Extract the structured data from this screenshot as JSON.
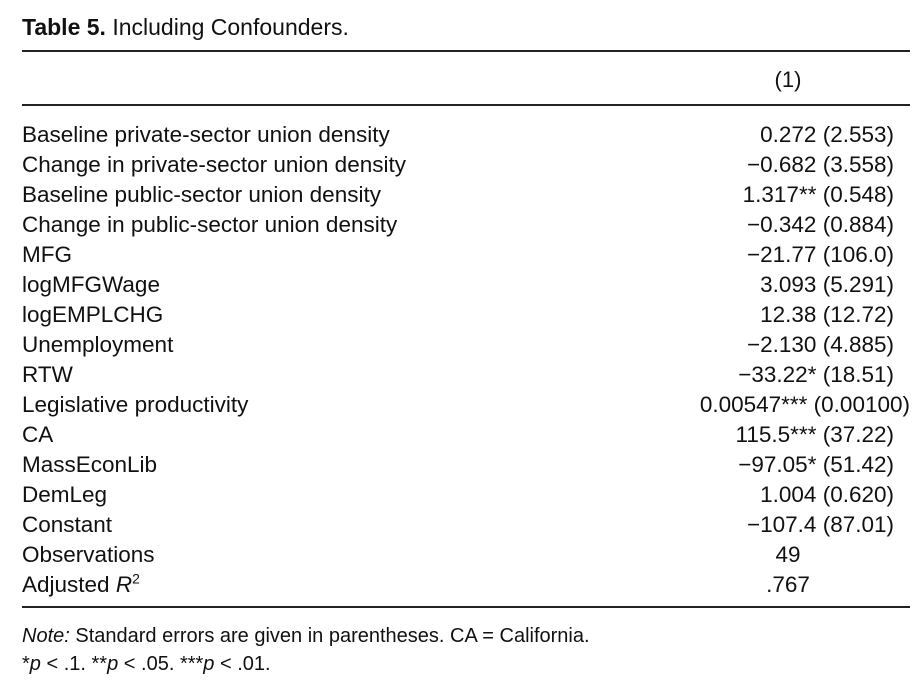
{
  "caption": {
    "label": "Table 5.",
    "title": "Including Confounders."
  },
  "column_header": "(1)",
  "rows": [
    {
      "variable": "Baseline private-sector union density",
      "value": "0.272 (2.553)"
    },
    {
      "variable": "Change in private-sector union density",
      "value": "−0.682 (3.558)"
    },
    {
      "variable": "Baseline public-sector union density",
      "value": "1.317** (0.548)"
    },
    {
      "variable": "Change in public-sector union density",
      "value": "−0.342 (0.884)"
    },
    {
      "variable": "MFG",
      "value": "−21.77 (106.0)"
    },
    {
      "variable": "logMFGWage",
      "value": "3.093 (5.291)"
    },
    {
      "variable": "logEMPLCHG",
      "value": "12.38 (12.72)"
    },
    {
      "variable": "Unemployment",
      "value": "−2.130 (4.885)"
    },
    {
      "variable": "RTW",
      "value": "−33.22* (18.51)"
    },
    {
      "variable": "Legislative productivity",
      "value": "0.00547*** (0.00100)"
    },
    {
      "variable": "CA",
      "value": "115.5*** (37.22)"
    },
    {
      "variable": "MassEconLib",
      "value": "−97.05* (51.42)"
    },
    {
      "variable": "DemLeg",
      "value": "1.004 (0.620)"
    },
    {
      "variable": "Constant",
      "value": "−107.4 (87.01)"
    },
    {
      "variable": "Observations",
      "value": "49"
    },
    {
      "variable": "Adjusted",
      "variable_symbol": "R",
      "variable_exponent": "2",
      "value": ".767"
    }
  ],
  "note": {
    "label": "Note:",
    "text": "Standard errors are given in parentheses. CA = California.",
    "sig_1_stars": "*",
    "sig_1_rest": " < .1. ",
    "sig_2_stars": "**",
    "sig_2_rest": " < .05. ",
    "sig_3_stars": "***",
    "sig_3_rest": " < .01.",
    "p_symbol": "p"
  }
}
